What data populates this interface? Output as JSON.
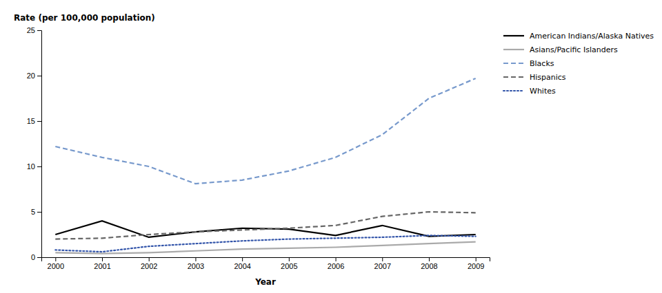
{
  "chart_data": {
    "type": "line",
    "x": [
      2000,
      2001,
      2002,
      2003,
      2004,
      2005,
      2006,
      2007,
      2008,
      2009
    ],
    "series": [
      {
        "name": "American Indians/Alaska Natives",
        "color": "#000000",
        "line_style": "solid",
        "values": [
          2.5,
          4.0,
          2.2,
          2.8,
          3.2,
          3.1,
          2.4,
          3.5,
          2.3,
          2.5
        ]
      },
      {
        "name": "Asians/Pacific Islanders",
        "color": "#aaaaaa",
        "line_style": "solid",
        "values": [
          0.5,
          0.4,
          0.5,
          0.7,
          0.9,
          1.0,
          1.1,
          1.3,
          1.5,
          1.7
        ]
      },
      {
        "name": "Blacks",
        "color": "#7799cc",
        "line_style": "dashed",
        "values": [
          12.2,
          11.0,
          10.0,
          8.1,
          8.5,
          9.5,
          11.0,
          13.5,
          17.5,
          19.7
        ]
      },
      {
        "name": "Hispanics",
        "color": "#666666",
        "line_style": "dashed",
        "values": [
          2.0,
          2.1,
          2.5,
          2.8,
          3.0,
          3.2,
          3.5,
          4.5,
          5.0,
          4.9
        ]
      },
      {
        "name": "Whites",
        "color": "#3355aa",
        "line_style": "dotted",
        "values": [
          0.8,
          0.6,
          1.2,
          1.5,
          1.8,
          2.0,
          2.1,
          2.2,
          2.4,
          2.3
        ]
      }
    ],
    "xlabel": "Year",
    "ylabel": "Rate (per 100,000 population)",
    "xlim": [
      1999.7,
      2009.3
    ],
    "xticks": [
      2000,
      2001,
      2002,
      2003,
      2004,
      2005,
      2006,
      2007,
      2008,
      2009
    ],
    "ylim": [
      0,
      25
    ],
    "yticks": [
      0,
      5,
      10,
      15,
      20,
      25
    ],
    "grid": false,
    "legend": "upper right"
  }
}
